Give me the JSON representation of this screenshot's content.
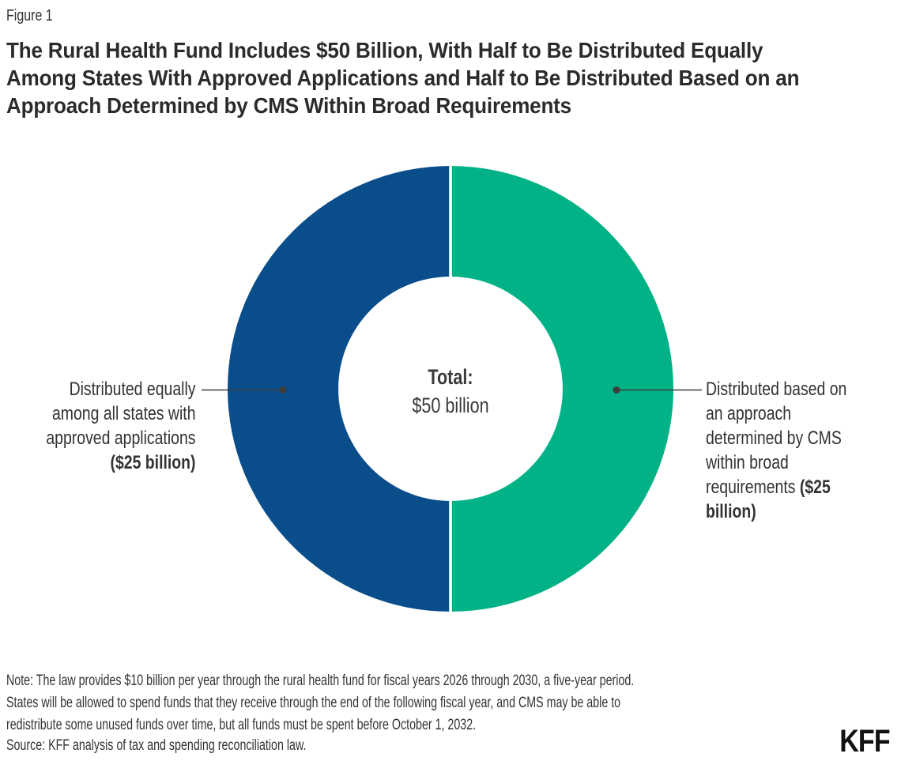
{
  "figure_label": "Figure 1",
  "title_lines": [
    "The Rural Health Fund Includes $50 Billion, With Half to Be Distributed Equally",
    "Among States With Approved Applications and Half to Be Distributed Based on an",
    "Approach Determined by CMS Within Broad Requirements"
  ],
  "chart_data": {
    "type": "pie",
    "variant": "donut",
    "title": "The Rural Health Fund Includes $50 Billion, With Half to Be Distributed Equally Among States With Approved Applications and Half to Be Distributed Based on an Approach Determined by CMS Within Broad Requirements",
    "total": {
      "label": "Total:",
      "value": "$50 billion",
      "amount_billions": 50
    },
    "slices": [
      {
        "label": "Distributed equally among all states with approved applications",
        "amount_label": "($25 billion)",
        "value_billions": 25,
        "share_pct": 50,
        "color": "#0A4D8B",
        "callout_side": "left"
      },
      {
        "label": "Distributed based on an approach determined by CMS within broad requirements",
        "amount_label": "($25 billion)",
        "value_billions": 25,
        "share_pct": 50,
        "color": "#00B286",
        "callout_side": "right"
      }
    ],
    "legend_position": "side-callout-labels",
    "grid": false,
    "colors": {
      "blue": "#0A4D8B",
      "green": "#00B286",
      "separator": "#FFFFFF",
      "leader": "#3D3D3D"
    },
    "callouts": {
      "left": {
        "lines": [
          [
            {
              "t": "Distributed equally",
              "b": false
            }
          ],
          [
            {
              "t": "among all states with",
              "b": false
            }
          ],
          [
            {
              "t": "approved applications",
              "b": false
            }
          ],
          [
            {
              "t": "($25 billion)",
              "b": true
            }
          ]
        ]
      },
      "right": {
        "lines": [
          [
            {
              "t": "Distributed based on",
              "b": false
            }
          ],
          [
            {
              "t": "an approach",
              "b": false
            }
          ],
          [
            {
              "t": "determined by CMS",
              "b": false
            }
          ],
          [
            {
              "t": "within broad",
              "b": false
            }
          ],
          [
            {
              "t": "requirements ",
              "b": false
            },
            {
              "t": "($25",
              "b": true
            }
          ],
          [
            {
              "t": "billion)",
              "b": true
            }
          ]
        ]
      }
    }
  },
  "note_lines": [
    "Note: The law provides $10 billion per year through the rural health fund for fiscal years 2026 through 2030, a five-year period.",
    "States will be allowed to spend funds that they receive through the end of the following fiscal year, and CMS may be able to",
    "redistribute some unused funds over time, but all funds must be spent before October 1, 2032."
  ],
  "source": "Source: KFF analysis of tax and spending reconciliation law.",
  "logo": "KFF"
}
